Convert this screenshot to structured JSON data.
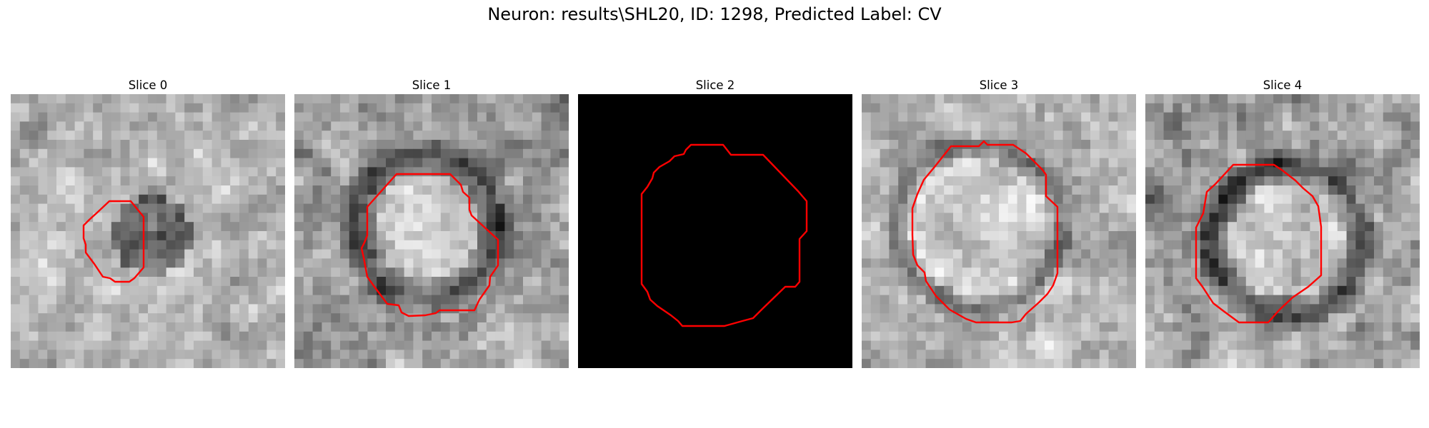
{
  "figure": {
    "title": "Neuron: results\\SHL20, ID: 1298, Predicted Label: CV"
  },
  "panels": [
    {
      "title": "Slice 0"
    },
    {
      "title": "Slice 1"
    },
    {
      "title": "Slice 2"
    },
    {
      "title": "Slice 3"
    },
    {
      "title": "Slice 4"
    }
  ],
  "colors": {
    "contour": "#ff0000",
    "background": "#ffffff"
  }
}
